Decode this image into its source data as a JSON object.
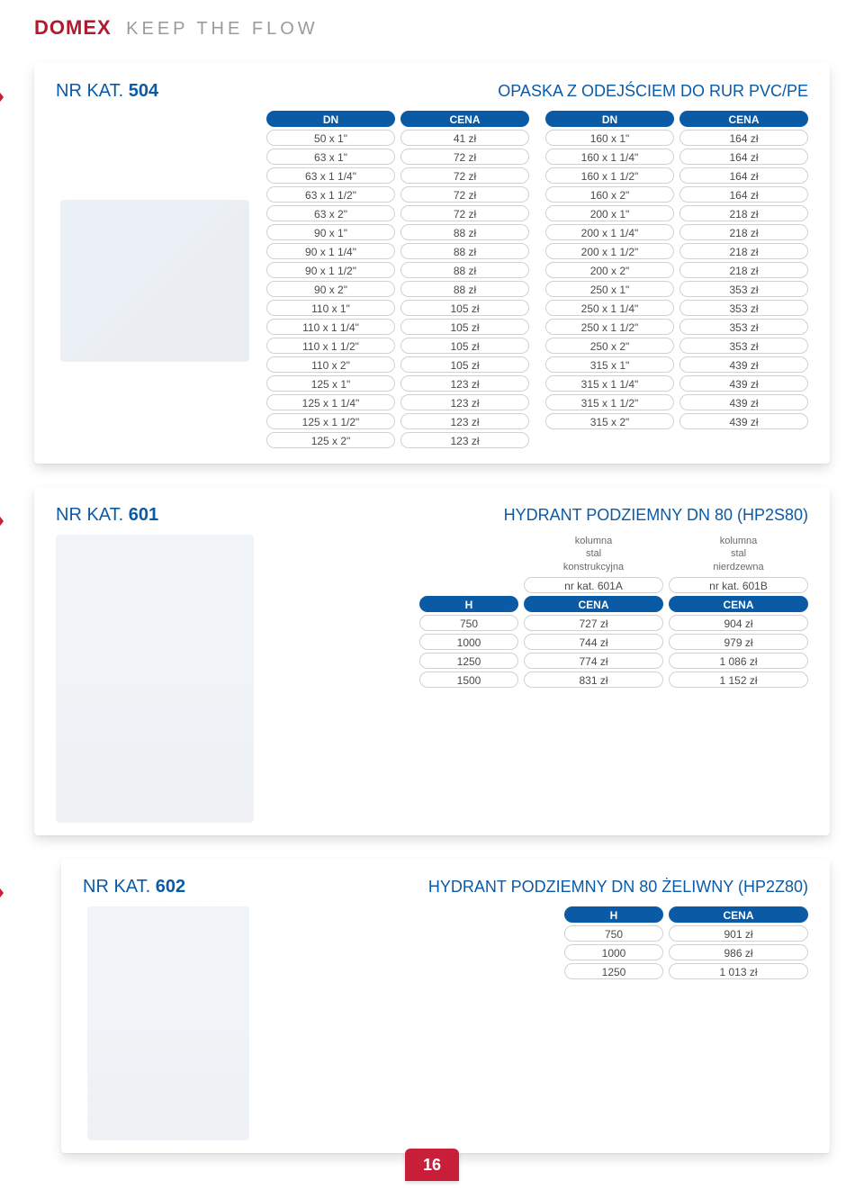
{
  "brand": "DOMEX",
  "tagline": "KEEP THE FLOW",
  "page_number": "16",
  "colors": {
    "brand_red": "#b01a2e",
    "accent_red": "#c81f3a",
    "blue": "#0b5aa6",
    "pill_border": "#cfd1d3",
    "text_gray": "#4a4a4a",
    "bg": "#ffffff"
  },
  "card504": {
    "kat_prefix": "NR KAT. ",
    "kat_num": "504",
    "title": "OPASKA Z ODEJŚCIEM DO RUR PVC/PE",
    "table_left": {
      "headers": [
        "DN",
        "CENA"
      ],
      "rows": [
        [
          "50 x 1\"",
          "41 zł"
        ],
        [
          "63 x 1\"",
          "72 zł"
        ],
        [
          "63 x 1 1/4\"",
          "72 zł"
        ],
        [
          "63 x 1 1/2\"",
          "72 zł"
        ],
        [
          "63 x 2\"",
          "72 zł"
        ],
        [
          "90 x 1\"",
          "88 zł"
        ],
        [
          "90 x 1 1/4\"",
          "88 zł"
        ],
        [
          "90 x 1 1/2\"",
          "88 zł"
        ],
        [
          "90 x 2\"",
          "88 zł"
        ],
        [
          "110 x 1\"",
          "105 zł"
        ],
        [
          "110 x 1 1/4\"",
          "105 zł"
        ],
        [
          "110 x 1 1/2\"",
          "105 zł"
        ],
        [
          "110 x 2\"",
          "105 zł"
        ],
        [
          "125 x 1\"",
          "123 zł"
        ],
        [
          "125 x 1 1/4\"",
          "123 zł"
        ],
        [
          "125 x 1 1/2\"",
          "123 zł"
        ],
        [
          "125 x 2\"",
          "123 zł"
        ]
      ]
    },
    "table_right": {
      "headers": [
        "DN",
        "CENA"
      ],
      "rows": [
        [
          "160 x 1\"",
          "164 zł"
        ],
        [
          "160 x 1 1/4\"",
          "164 zł"
        ],
        [
          "160 x 1 1/2\"",
          "164 zł"
        ],
        [
          "160 x 2\"",
          "164 zł"
        ],
        [
          "200 x 1\"",
          "218 zł"
        ],
        [
          "200 x 1 1/4\"",
          "218 zł"
        ],
        [
          "200 x 1 1/2\"",
          "218 zł"
        ],
        [
          "200 x 2\"",
          "218 zł"
        ],
        [
          "250 x 1\"",
          "353 zł"
        ],
        [
          "250 x 1 1/4\"",
          "353 zł"
        ],
        [
          "250 x 1 1/2\"",
          "353 zł"
        ],
        [
          "250 x 2\"",
          "353 zł"
        ],
        [
          "315 x 1\"",
          "439 zł"
        ],
        [
          "315 x 1 1/4\"",
          "439 zł"
        ],
        [
          "315 x 1 1/2\"",
          "439 zł"
        ],
        [
          "315 x 2\"",
          "439 zł"
        ]
      ]
    }
  },
  "card601": {
    "kat_prefix": "NR KAT. ",
    "kat_num": "601",
    "title": "HYDRANT PODZIEMNY DN 80 (HP2S80)",
    "col_label_a": "kolumna\nstal\nkonstrukcyjna",
    "col_label_b": "kolumna\nstal\nnierdzewna",
    "sub_a": "nr kat. 601A",
    "sub_b": "nr kat. 601B",
    "headers": [
      "H",
      "CENA",
      "CENA"
    ],
    "rows": [
      [
        "750",
        "727 zł",
        "904 zł"
      ],
      [
        "1000",
        "744 zł",
        "979 zł"
      ],
      [
        "1250",
        "774 zł",
        "1 086 zł"
      ],
      [
        "1500",
        "831 zł",
        "1 152 zł"
      ]
    ]
  },
  "card602": {
    "kat_prefix": "NR KAT. ",
    "kat_num": "602",
    "title": "HYDRANT PODZIEMNY DN 80 ŻELIWNY (HP2Z80)",
    "headers": [
      "H",
      "CENA"
    ],
    "rows": [
      [
        "750",
        "901 zł"
      ],
      [
        "1000",
        "986 zł"
      ],
      [
        "1250",
        "1 013 zł"
      ]
    ]
  }
}
